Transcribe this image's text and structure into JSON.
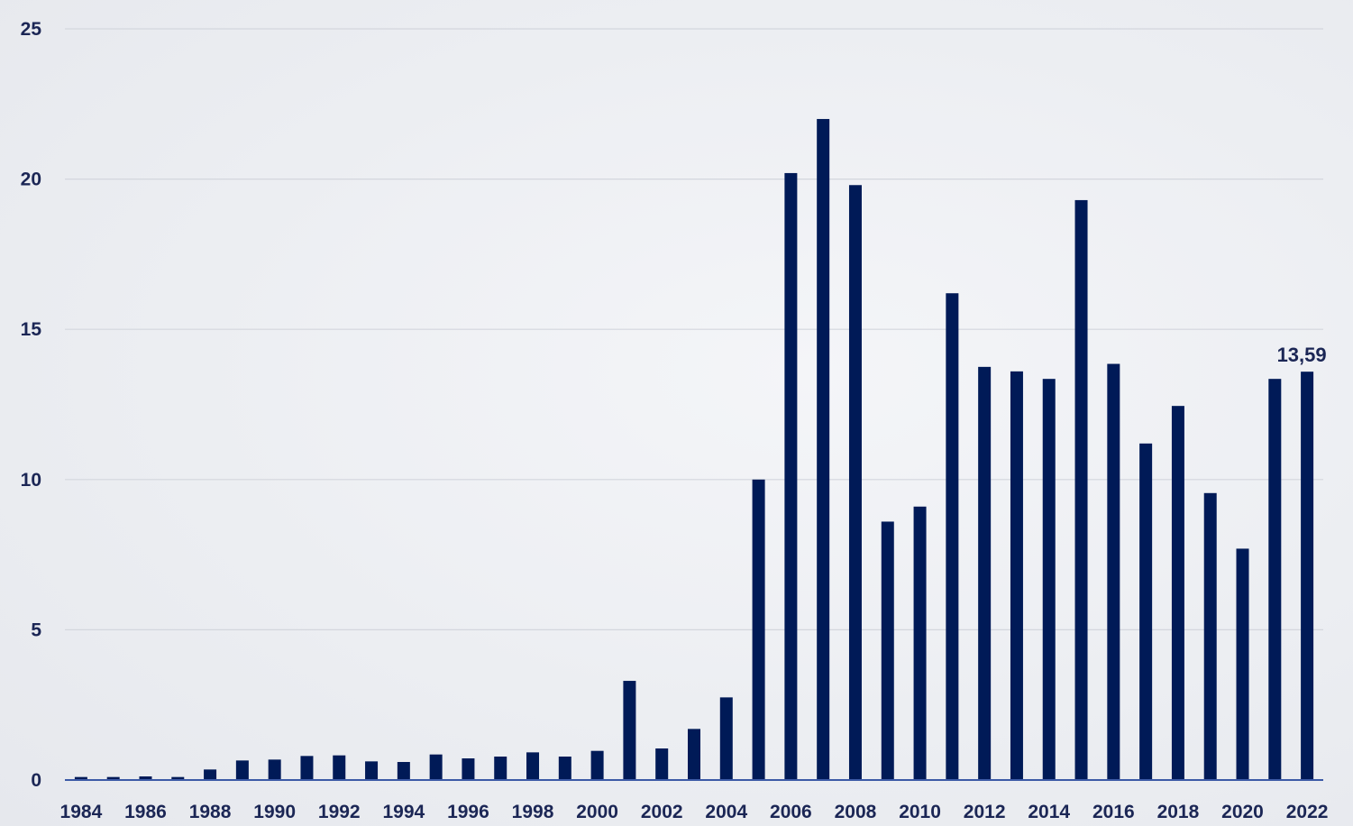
{
  "chart_data": {
    "type": "bar",
    "categories": [
      "1984",
      "1985",
      "1986",
      "1987",
      "1988",
      "1989",
      "1990",
      "1991",
      "1992",
      "1993",
      "1994",
      "1995",
      "1996",
      "1997",
      "1998",
      "1999",
      "2000",
      "2001",
      "2002",
      "2003",
      "2004",
      "2005",
      "2006",
      "2007",
      "2008",
      "2009",
      "2010",
      "2011",
      "2012",
      "2013",
      "2014",
      "2015",
      "2016",
      "2017",
      "2018",
      "2019",
      "2020",
      "2021",
      "2022"
    ],
    "x_tick_labels": [
      "1984",
      "1986",
      "1988",
      "1990",
      "1992",
      "1994",
      "1996",
      "1998",
      "2000",
      "2002",
      "2004",
      "2006",
      "2008",
      "2010",
      "2012",
      "2014",
      "2016",
      "2018",
      "2020",
      "2022"
    ],
    "series": [
      {
        "values": [
          0.1,
          0.1,
          0.12,
          0.1,
          0.35,
          0.65,
          0.68,
          0.8,
          0.82,
          0.62,
          0.6,
          0.85,
          0.72,
          0.78,
          0.92,
          0.78,
          0.97,
          3.3,
          1.05,
          1.7,
          2.75,
          10.0,
          20.2,
          22.0,
          19.8,
          8.6,
          9.1,
          16.2,
          13.75,
          13.6,
          13.35,
          19.3,
          13.85,
          11.2,
          12.45,
          9.55,
          7.7,
          13.35,
          13.59
        ],
        "color": "#001a57"
      }
    ],
    "y_ticks": [
      "0",
      "5",
      "10",
      "15",
      "20",
      "25"
    ],
    "ylim": [
      0,
      25
    ],
    "title": "",
    "xlabel": "",
    "ylabel": "",
    "grid": true,
    "legend": "none",
    "annotations": [
      {
        "category": "2022",
        "text": "13,59"
      }
    ],
    "colors": {
      "bar": "#001a57",
      "gridline": "#d3d6dd",
      "axis": "#3c5aa6",
      "text": "#1b2655"
    }
  }
}
